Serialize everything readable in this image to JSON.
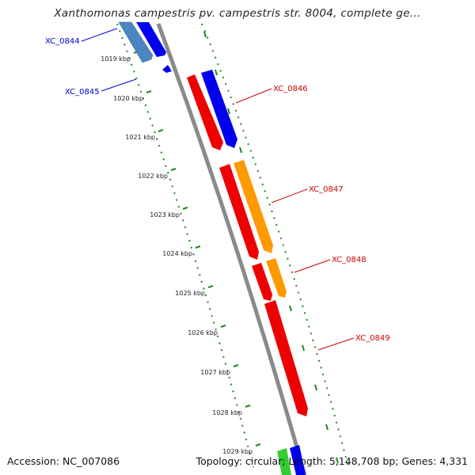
{
  "title": "Xanthomonas campestris pv. campestris str. 8004, complete ge...",
  "footer": {
    "accession_label": "Accession:",
    "accession": "NC_007086",
    "topology_label": "Topology:",
    "topology": "circular;",
    "length_label": "Length:",
    "length": "5,148,708 bp;",
    "genes_label": "Genes:",
    "genes": "4,331"
  },
  "ticks": [
    {
      "label": "1019 kbp"
    },
    {
      "label": "1020 kbp"
    },
    {
      "label": "1021 kbp"
    },
    {
      "label": "1022 kbp"
    },
    {
      "label": "1023 kbp"
    },
    {
      "label": "1024 kbp"
    },
    {
      "label": "1025 kbp"
    },
    {
      "label": "1026 kbp"
    },
    {
      "label": "1027 kbp"
    },
    {
      "label": "1028 kbp"
    },
    {
      "label": "1029 kbp"
    }
  ],
  "genes": [
    {
      "name": "XC_0844",
      "color": "#0000cc"
    },
    {
      "name": "XC_0845",
      "color": "#0000cc"
    },
    {
      "name": "XC_0846",
      "color": "#cc0000"
    },
    {
      "name": "XC_0847",
      "color": "#cc0000"
    },
    {
      "name": "XC_0848",
      "color": "#cc0000"
    },
    {
      "name": "XC_0849",
      "color": "#cc0000"
    }
  ],
  "colors": {
    "backbone": "#8a8a8a",
    "ruler": "#1a8a1a",
    "red_feature": "#ee0000",
    "blue_feature": "#0000ee",
    "orange_feature": "#ff9900",
    "steel_feature": "#4a86c0",
    "green_feature": "#33cc33"
  }
}
